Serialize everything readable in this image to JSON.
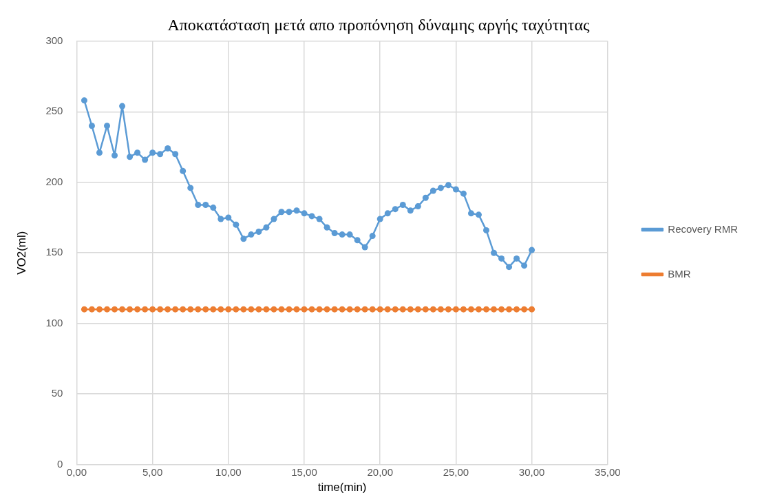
{
  "chart_data": {
    "type": "line",
    "title": "Αποκατάσταση μετά απο προπόνηση δύναμης αργής ταχύτητας",
    "xlabel": "time(min)",
    "ylabel": "VO2(ml)",
    "x": [
      0.5,
      1,
      1.5,
      2,
      2.5,
      3,
      3.5,
      4,
      4.5,
      5,
      5.5,
      6,
      6.5,
      7,
      7.5,
      8,
      8.5,
      9,
      9.5,
      10,
      10.5,
      11,
      11.5,
      12,
      12.5,
      13,
      13.5,
      14,
      14.5,
      15,
      15.5,
      16,
      16.5,
      17,
      17.5,
      18,
      18.5,
      19,
      19.5,
      20,
      20.5,
      21,
      21.5,
      22,
      22.5,
      23,
      23.5,
      24,
      24.5,
      25,
      25.5,
      26,
      26.5,
      27,
      27.5,
      28,
      28.5,
      29,
      29.5,
      30
    ],
    "series": [
      {
        "name": "Recovery RMR",
        "color": "#5b9bd5",
        "values": [
          258,
          240,
          221,
          240,
          219,
          254,
          218,
          221,
          216,
          221,
          220,
          224,
          220,
          208,
          196,
          184,
          184,
          182,
          174,
          175,
          170,
          160,
          163,
          165,
          168,
          174,
          179,
          179,
          180,
          178,
          176,
          174,
          168,
          164,
          163,
          163,
          159,
          154,
          162,
          174,
          178,
          181,
          184,
          180,
          183,
          189,
          194,
          196,
          198,
          195,
          192,
          178,
          177,
          166,
          150,
          146,
          140,
          146,
          141,
          152
        ]
      },
      {
        "name": "BMR",
        "color": "#ed7d31",
        "values": [
          110,
          110,
          110,
          110,
          110,
          110,
          110,
          110,
          110,
          110,
          110,
          110,
          110,
          110,
          110,
          110,
          110,
          110,
          110,
          110,
          110,
          110,
          110,
          110,
          110,
          110,
          110,
          110,
          110,
          110,
          110,
          110,
          110,
          110,
          110,
          110,
          110,
          110,
          110,
          110,
          110,
          110,
          110,
          110,
          110,
          110,
          110,
          110,
          110,
          110,
          110,
          110,
          110,
          110,
          110,
          110,
          110,
          110,
          110,
          110
        ]
      }
    ],
    "xlim": [
      0,
      35
    ],
    "xticks": [
      {
        "value": 0,
        "label": "0,00"
      },
      {
        "value": 5,
        "label": "5,00"
      },
      {
        "value": 10,
        "label": "10,00"
      },
      {
        "value": 15,
        "label": "15,00"
      },
      {
        "value": 20,
        "label": "20,00"
      },
      {
        "value": 25,
        "label": "25,00"
      },
      {
        "value": 30,
        "label": "30,00"
      },
      {
        "value": 35,
        "label": "35,00"
      }
    ],
    "ylim": [
      0,
      300
    ],
    "yticks": [
      0,
      50,
      100,
      150,
      200,
      250,
      300
    ],
    "grid": true,
    "legend": "right",
    "marker": "circle",
    "line_style": "solid"
  }
}
